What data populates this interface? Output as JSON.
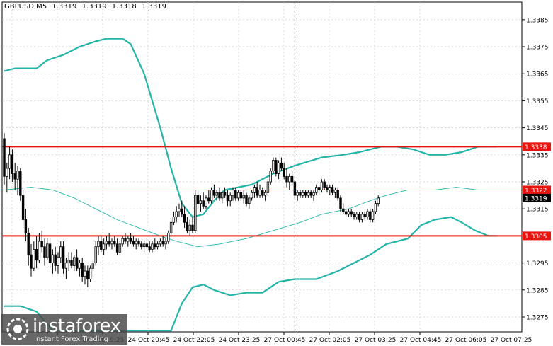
{
  "header": {
    "symbol": "GBPUSD,M5",
    "ohlc": [
      "1.3319",
      "1.3319",
      "1.3318",
      "1.3319"
    ]
  },
  "branding": {
    "name": "instaforex",
    "tagline": "Instant Forex Trading"
  },
  "colors": {
    "candles": "#000000",
    "bands": "#25b5a8",
    "ma": "#25b5a8",
    "level": "#e8150f",
    "vline": "#000000",
    "grid": "#c8c8c8"
  },
  "chart_data": {
    "type": "candlestick",
    "title": "GBPUSD,M5",
    "ylim": [
      1.32695,
      1.33915
    ],
    "yticks": [
      1.3385,
      1.3375,
      1.3365,
      1.3355,
      1.3345,
      1.3335,
      1.3325,
      1.3315,
      1.3295,
      1.3285,
      1.3275
    ],
    "xticks": [
      "24 Oct 19:25",
      "24 Oct 20:45",
      "24 Oct 22:05",
      "24 Oct 23:25",
      "27 Oct 00:45",
      "27 Oct 02:05",
      "27 Oct 03:25",
      "27 Oct 04:45",
      "27 Oct 06:05",
      "27 Oct 07:25"
    ],
    "levels": [
      {
        "value": 1.3338,
        "label": "1.3338",
        "style": "thick"
      },
      {
        "value": 1.3322,
        "label": "1.3322",
        "style": "thin"
      },
      {
        "value": 1.3305,
        "label": "1.3305",
        "style": "thick"
      }
    ],
    "current_price": {
      "value": 1.3319,
      "label": "1.3319"
    },
    "vertical_marker_index": 108,
    "candles": [
      [
        1.3341,
        1.3343,
        1.3324,
        1.3327
      ],
      [
        1.3327,
        1.3332,
        1.3321,
        1.333
      ],
      [
        1.333,
        1.3338,
        1.3326,
        1.3335
      ],
      [
        1.3335,
        1.3337,
        1.3325,
        1.3328
      ],
      [
        1.3328,
        1.3332,
        1.3322,
        1.3326
      ],
      [
        1.3326,
        1.3331,
        1.332,
        1.3329
      ],
      [
        1.3329,
        1.333,
        1.3318,
        1.332
      ],
      [
        1.332,
        1.3322,
        1.3308,
        1.3311
      ],
      [
        1.3311,
        1.3315,
        1.3303,
        1.3306
      ],
      [
        1.3306,
        1.3308,
        1.3294,
        1.3298
      ],
      [
        1.3298,
        1.3302,
        1.329,
        1.3293
      ],
      [
        1.3293,
        1.3303,
        1.3292,
        1.33
      ],
      [
        1.33,
        1.3305,
        1.3293,
        1.3296
      ],
      [
        1.3296,
        1.3306,
        1.3295,
        1.3303
      ],
      [
        1.3303,
        1.3307,
        1.3299,
        1.3301
      ],
      [
        1.3301,
        1.3304,
        1.3294,
        1.3297
      ],
      [
        1.3297,
        1.3304,
        1.3296,
        1.3302
      ],
      [
        1.3302,
        1.3304,
        1.3293,
        1.3295
      ],
      [
        1.3295,
        1.33,
        1.3291,
        1.3298
      ],
      [
        1.3298,
        1.3301,
        1.3292,
        1.3294
      ],
      [
        1.3294,
        1.3299,
        1.3291,
        1.3297
      ],
      [
        1.3297,
        1.3303,
        1.3295,
        1.3301
      ],
      [
        1.3301,
        1.3303,
        1.3291,
        1.3293
      ],
      [
        1.3293,
        1.3297,
        1.3289,
        1.3295
      ],
      [
        1.3295,
        1.3299,
        1.3292,
        1.3296
      ],
      [
        1.3296,
        1.3299,
        1.3293,
        1.3294
      ],
      [
        1.3294,
        1.3298,
        1.3292,
        1.3297
      ],
      [
        1.3297,
        1.33,
        1.3292,
        1.3293
      ],
      [
        1.3293,
        1.3296,
        1.329,
        1.3295
      ],
      [
        1.3295,
        1.3297,
        1.3288,
        1.329
      ],
      [
        1.329,
        1.3294,
        1.3287,
        1.3292
      ],
      [
        1.3292,
        1.3294,
        1.3286,
        1.3289
      ],
      [
        1.3289,
        1.3294,
        1.3288,
        1.3293
      ],
      [
        1.3293,
        1.3296,
        1.329,
        1.3295
      ],
      [
        1.3295,
        1.3303,
        1.3294,
        1.3301
      ],
      [
        1.3301,
        1.3305,
        1.3298,
        1.3303
      ],
      [
        1.3303,
        1.3305,
        1.3299,
        1.33
      ],
      [
        1.33,
        1.3304,
        1.3298,
        1.3302
      ],
      [
        1.3302,
        1.3305,
        1.33,
        1.3303
      ],
      [
        1.3303,
        1.3306,
        1.3301,
        1.3302
      ],
      [
        1.3302,
        1.3304,
        1.33,
        1.3303
      ],
      [
        1.3303,
        1.3305,
        1.3301,
        1.3302
      ],
      [
        1.3302,
        1.3304,
        1.3298,
        1.3299
      ],
      [
        1.3299,
        1.3303,
        1.3298,
        1.3302
      ],
      [
        1.3302,
        1.3305,
        1.3301,
        1.3304
      ],
      [
        1.3304,
        1.3306,
        1.3302,
        1.3303
      ],
      [
        1.3303,
        1.3305,
        1.3301,
        1.3304
      ],
      [
        1.3304,
        1.3306,
        1.3302,
        1.3303
      ],
      [
        1.3303,
        1.3305,
        1.3301,
        1.3302
      ],
      [
        1.3302,
        1.3304,
        1.33,
        1.3303
      ],
      [
        1.3303,
        1.3304,
        1.3301,
        1.3302
      ],
      [
        1.3302,
        1.3303,
        1.33,
        1.3301
      ],
      [
        1.3301,
        1.3303,
        1.3299,
        1.3302
      ],
      [
        1.3302,
        1.3304,
        1.33,
        1.3301
      ],
      [
        1.3301,
        1.3303,
        1.3299,
        1.33
      ],
      [
        1.33,
        1.3303,
        1.3299,
        1.3302
      ],
      [
        1.3302,
        1.3304,
        1.33,
        1.3301
      ],
      [
        1.3301,
        1.3303,
        1.33,
        1.3302
      ],
      [
        1.3302,
        1.3304,
        1.3301,
        1.3303
      ],
      [
        1.3303,
        1.3305,
        1.3301,
        1.3302
      ],
      [
        1.3302,
        1.3304,
        1.33,
        1.3303
      ],
      [
        1.3303,
        1.3307,
        1.3302,
        1.3306
      ],
      [
        1.3306,
        1.3311,
        1.3305,
        1.331
      ],
      [
        1.331,
        1.3314,
        1.3309,
        1.3312
      ],
      [
        1.3312,
        1.3316,
        1.331,
        1.3314
      ],
      [
        1.3314,
        1.3317,
        1.3312,
        1.3315
      ],
      [
        1.3315,
        1.3318,
        1.3312,
        1.3313
      ],
      [
        1.3313,
        1.3316,
        1.3308,
        1.331
      ],
      [
        1.331,
        1.3312,
        1.3306,
        1.3307
      ],
      [
        1.3307,
        1.3311,
        1.3305,
        1.3309
      ],
      [
        1.3309,
        1.3312,
        1.3306,
        1.3307
      ],
      [
        1.3307,
        1.3322,
        1.3306,
        1.332
      ],
      [
        1.332,
        1.3322,
        1.3315,
        1.3317
      ],
      [
        1.3317,
        1.332,
        1.3314,
        1.3318
      ],
      [
        1.3318,
        1.3321,
        1.3315,
        1.3316
      ],
      [
        1.3316,
        1.332,
        1.3315,
        1.3319
      ],
      [
        1.3319,
        1.3322,
        1.3317,
        1.3318
      ],
      [
        1.3318,
        1.3323,
        1.3317,
        1.3322
      ],
      [
        1.3322,
        1.3324,
        1.3319,
        1.332
      ],
      [
        1.332,
        1.3322,
        1.3318,
        1.3321
      ],
      [
        1.3321,
        1.3323,
        1.3318,
        1.3319
      ],
      [
        1.3319,
        1.3322,
        1.3317,
        1.3321
      ],
      [
        1.3321,
        1.3323,
        1.3319,
        1.332
      ],
      [
        1.332,
        1.3322,
        1.3316,
        1.3318
      ],
      [
        1.3318,
        1.3321,
        1.3316,
        1.332
      ],
      [
        1.332,
        1.3323,
        1.3318,
        1.3322
      ],
      [
        1.3322,
        1.3323,
        1.3318,
        1.3319
      ],
      [
        1.3319,
        1.3322,
        1.3318,
        1.3321
      ],
      [
        1.3321,
        1.3322,
        1.3318,
        1.3319
      ],
      [
        1.3319,
        1.3322,
        1.3317,
        1.332
      ],
      [
        1.332,
        1.3321,
        1.3316,
        1.3317
      ],
      [
        1.3317,
        1.332,
        1.3315,
        1.3319
      ],
      [
        1.3319,
        1.3322,
        1.3318,
        1.3321
      ],
      [
        1.3321,
        1.3324,
        1.3319,
        1.3323
      ],
      [
        1.3323,
        1.3325,
        1.3319,
        1.332
      ],
      [
        1.332,
        1.3324,
        1.3319,
        1.3322
      ],
      [
        1.3322,
        1.3323,
        1.3319,
        1.332
      ],
      [
        1.332,
        1.3322,
        1.3318,
        1.3321
      ],
      [
        1.3321,
        1.3326,
        1.332,
        1.3325
      ],
      [
        1.3325,
        1.333,
        1.3324,
        1.3329
      ],
      [
        1.3329,
        1.3334,
        1.3328,
        1.3333
      ],
      [
        1.3333,
        1.3334,
        1.3327,
        1.3328
      ],
      [
        1.3328,
        1.3333,
        1.3326,
        1.3332
      ],
      [
        1.3332,
        1.3334,
        1.3329,
        1.333
      ],
      [
        1.333,
        1.3332,
        1.3326,
        1.3327
      ],
      [
        1.3327,
        1.333,
        1.3323,
        1.3325
      ],
      [
        1.3325,
        1.3328,
        1.3322,
        1.3327
      ],
      [
        1.3327,
        1.3329,
        1.3324,
        1.3325
      ],
      [
        1.3325,
        1.3326,
        1.3319,
        1.332
      ],
      [
        1.332,
        1.3322,
        1.3318,
        1.3321
      ],
      [
        1.3321,
        1.3322,
        1.3319,
        1.332
      ],
      [
        1.332,
        1.3322,
        1.3319,
        1.3321
      ],
      [
        1.3321,
        1.3322,
        1.3319,
        1.332
      ],
      [
        1.332,
        1.3322,
        1.3319,
        1.3321
      ],
      [
        1.3321,
        1.3322,
        1.3319,
        1.332
      ],
      [
        1.332,
        1.3322,
        1.3318,
        1.3321
      ],
      [
        1.3321,
        1.3324,
        1.332,
        1.3323
      ],
      [
        1.3323,
        1.3324,
        1.332,
        1.3322
      ],
      [
        1.3322,
        1.3326,
        1.3321,
        1.3325
      ],
      [
        1.3325,
        1.3326,
        1.3322,
        1.3323
      ],
      [
        1.3323,
        1.3324,
        1.3321,
        1.3322
      ],
      [
        1.3322,
        1.3324,
        1.332,
        1.3323
      ],
      [
        1.3323,
        1.3324,
        1.332,
        1.3321
      ],
      [
        1.3321,
        1.3323,
        1.3319,
        1.3322
      ],
      [
        1.3322,
        1.3323,
        1.3318,
        1.3319
      ],
      [
        1.3319,
        1.332,
        1.3314,
        1.3315
      ],
      [
        1.3315,
        1.3317,
        1.3313,
        1.3314
      ],
      [
        1.3314,
        1.3315,
        1.3312,
        1.3313
      ],
      [
        1.3313,
        1.3315,
        1.3312,
        1.3314
      ],
      [
        1.3314,
        1.3315,
        1.3312,
        1.3313
      ],
      [
        1.3313,
        1.3314,
        1.3311,
        1.3312
      ],
      [
        1.3312,
        1.3314,
        1.3311,
        1.3313
      ],
      [
        1.3313,
        1.3314,
        1.331,
        1.3311
      ],
      [
        1.3311,
        1.3314,
        1.331,
        1.3313
      ],
      [
        1.3313,
        1.3314,
        1.3311,
        1.3312
      ],
      [
        1.3312,
        1.3315,
        1.3311,
        1.3314
      ],
      [
        1.3314,
        1.3315,
        1.331,
        1.3311
      ],
      [
        1.3311,
        1.3315,
        1.331,
        1.3314
      ],
      [
        1.3314,
        1.3318,
        1.3313,
        1.3317
      ],
      [
        1.3317,
        1.332,
        1.3316,
        1.3319
      ]
    ],
    "bollinger": {
      "upper": [
        [
          0,
          1.3366
        ],
        [
          4,
          1.3367
        ],
        [
          12,
          1.3367
        ],
        [
          16,
          1.337
        ],
        [
          22,
          1.3372
        ],
        [
          28,
          1.3375
        ],
        [
          34,
          1.3377
        ],
        [
          38,
          1.3378
        ],
        [
          44,
          1.3378
        ],
        [
          47,
          1.3376
        ],
        [
          52,
          1.3365
        ],
        [
          58,
          1.3345
        ],
        [
          62,
          1.333
        ],
        [
          66,
          1.3317
        ],
        [
          70,
          1.3312
        ],
        [
          74,
          1.3313
        ],
        [
          78,
          1.3318
        ],
        [
          82,
          1.3322
        ],
        [
          92,
          1.3324
        ],
        [
          100,
          1.3328
        ],
        [
          108,
          1.3331
        ],
        [
          118,
          1.3334
        ],
        [
          126,
          1.3335
        ],
        [
          132,
          1.3336
        ],
        [
          140,
          1.3338
        ],
        [
          146,
          1.3338
        ],
        [
          152,
          1.3337
        ],
        [
          158,
          1.3335
        ],
        [
          164,
          1.3335
        ],
        [
          170,
          1.3336
        ],
        [
          176,
          1.3338
        ],
        [
          183,
          1.3338
        ]
      ],
      "middle": [
        [
          0,
          1.3322
        ],
        [
          10,
          1.3323
        ],
        [
          18,
          1.3322
        ],
        [
          26,
          1.3319
        ],
        [
          34,
          1.3315
        ],
        [
          42,
          1.3311
        ],
        [
          50,
          1.3308
        ],
        [
          58,
          1.3305
        ],
        [
          64,
          1.3303
        ],
        [
          72,
          1.3301
        ],
        [
          80,
          1.3302
        ],
        [
          90,
          1.3304
        ],
        [
          100,
          1.3307
        ],
        [
          110,
          1.331
        ],
        [
          118,
          1.3313
        ],
        [
          128,
          1.3315
        ],
        [
          136,
          1.3318
        ],
        [
          142,
          1.332
        ],
        [
          150,
          1.3322
        ],
        [
          160,
          1.3322
        ],
        [
          168,
          1.3323
        ],
        [
          176,
          1.3322
        ],
        [
          183,
          1.3322
        ]
      ],
      "lower": [
        [
          0,
          1.3279
        ],
        [
          6,
          1.3279
        ],
        [
          12,
          1.3277
        ],
        [
          18,
          1.327
        ],
        [
          62,
          1.327
        ],
        [
          66,
          1.328
        ],
        [
          70,
          1.3286
        ],
        [
          74,
          1.3287
        ],
        [
          78,
          1.3285
        ],
        [
          84,
          1.3283
        ],
        [
          90,
          1.3284
        ],
        [
          96,
          1.3284
        ],
        [
          102,
          1.3288
        ],
        [
          108,
          1.3289
        ],
        [
          116,
          1.3289
        ],
        [
          124,
          1.3292
        ],
        [
          130,
          1.3295
        ],
        [
          136,
          1.3298
        ],
        [
          142,
          1.3302
        ],
        [
          150,
          1.3304
        ],
        [
          155,
          1.3309
        ],
        [
          160,
          1.3311
        ],
        [
          166,
          1.3312
        ],
        [
          170,
          1.331
        ],
        [
          175,
          1.3307
        ],
        [
          180,
          1.3305
        ],
        [
          183,
          1.3305
        ]
      ]
    }
  }
}
